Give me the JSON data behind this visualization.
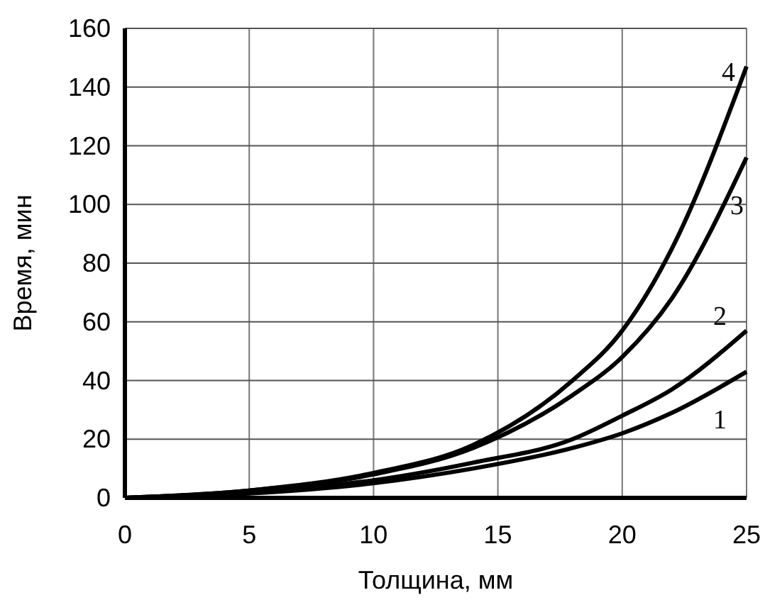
{
  "chart_data": {
    "type": "line",
    "xlabel": "Толщина, мм",
    "ylabel": "Время, мин",
    "x": [
      0,
      5,
      10,
      14,
      18,
      20,
      22,
      25
    ],
    "series": [
      {
        "name": "1",
        "color": "#000000",
        "values": [
          0,
          1.5,
          5,
          10,
          17,
          22,
          29,
          43
        ]
      },
      {
        "name": "2",
        "color": "#000000",
        "values": [
          0,
          2,
          6,
          12,
          20,
          28,
          37,
          57
        ]
      },
      {
        "name": "3",
        "color": "#000000",
        "values": [
          0,
          2.5,
          8,
          17,
          35,
          48,
          68,
          116
        ]
      },
      {
        "name": "4",
        "color": "#000000",
        "values": [
          0,
          2.5,
          8.5,
          18,
          40,
          57,
          85,
          147
        ]
      }
    ],
    "xlim": [
      0,
      25
    ],
    "xticks": [
      0,
      5,
      10,
      15,
      20,
      25
    ],
    "ylim": [
      0,
      160
    ],
    "yticks": [
      0,
      20,
      40,
      60,
      80,
      100,
      120,
      140,
      160
    ],
    "grid": true,
    "marker": "none",
    "line_style": "solid"
  }
}
